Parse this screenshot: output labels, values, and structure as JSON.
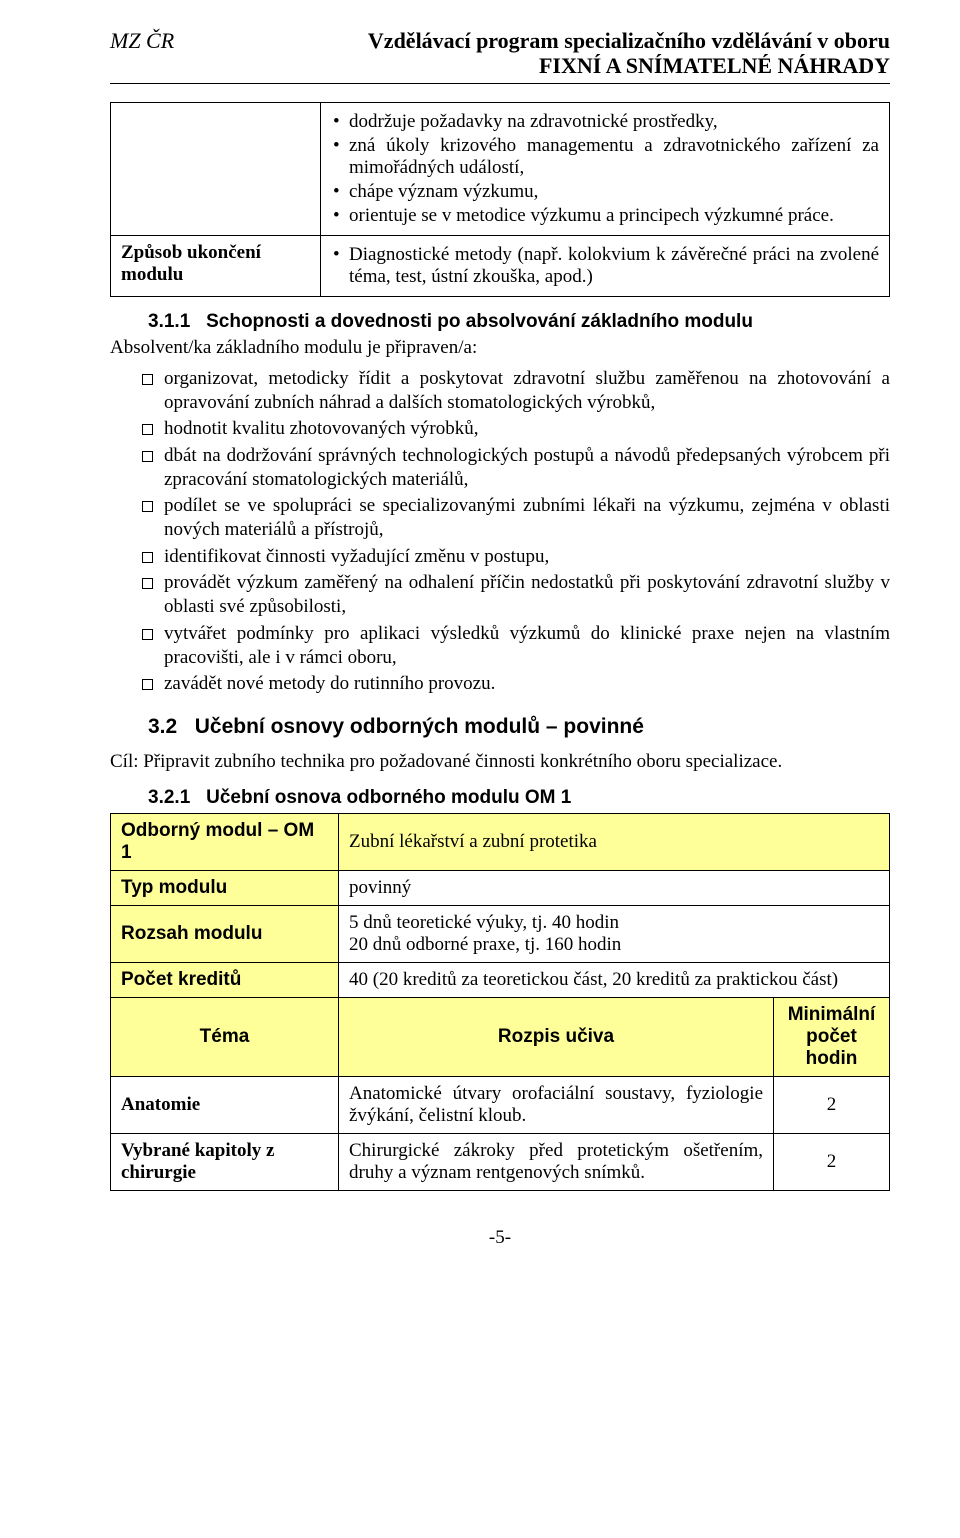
{
  "header": {
    "left": "MZ ČR",
    "right_line1": "Vzdělávací program specializačního vzdělávání v oboru",
    "right_line2": "FIXNÍ A SNÍMATELNÉ NÁHRADY"
  },
  "top_table": {
    "row1_bullets": [
      "dodržuje požadavky na zdravotnické prostředky,",
      "zná úkoly krizového managementu a zdravotnického zařízení za mimořádných událostí,",
      "chápe význam výzkumu,",
      "orientuje se v metodice výzkumu a principech výzkumné práce."
    ],
    "row2_label": "Způsob ukončení modulu",
    "row2_bullet": "Diagnostické metody (např. kolokvium k závěrečné práci na zvolené téma, test, ústní zkouška, apod.)"
  },
  "section_311": {
    "number": "3.1.1",
    "title": "Schopnosti a dovednosti po absolvování základního modulu",
    "intro": "Absolvent/ka základního modulu je připraven/a:",
    "items": [
      "organizovat, metodicky řídit a poskytovat zdravotní službu zaměřenou na zhotovování a opravování zubních náhrad a dalších stomatologických výrobků,",
      "hodnotit kvalitu zhotovovaných výrobků,",
      "dbát na dodržování správných technologických postupů a návodů předepsaných výrobcem při zpracování stomatologických materiálů,",
      "podílet se ve spolupráci se specializovanými zubními lékaři na výzkumu, zejména v oblasti nových materiálů a přístrojů,",
      "identifikovat činnosti vyžadující změnu v postupu,",
      "provádět výzkum zaměřený na odhalení příčin nedostatků při poskytování zdravotní služby v oblasti své způsobilosti,",
      "vytvářet podmínky pro aplikaci výsledků výzkumů do klinické praxe nejen na vlastním pracovišti, ale i v rámci oboru,",
      "zavádět nové metody do rutinního provozu."
    ]
  },
  "section_32": {
    "number": "3.2",
    "title": "Učební osnovy odborných modulů – povinné",
    "cil": "Cíl: Připravit zubního technika pro požadované činnosti konkrétního oboru specializace."
  },
  "section_321": {
    "number": "3.2.1",
    "title": "Učební osnova odborného modulu OM 1"
  },
  "module_table": {
    "r1_label": "Odborný modul – OM 1",
    "r1_value": "Zubní lékařství a zubní protetika",
    "r2_label": "Typ modulu",
    "r2_value": "povinný",
    "r3_label": "Rozsah modulu",
    "r3_value_line1": "5 dnů teoretické výuky, tj. 40 hodin",
    "r3_value_line2": "20 dnů odborné praxe, tj. 160 hodin",
    "r4_label": "Počet kreditů",
    "r4_value": "40 (20 kreditů za teoretickou část, 20 kreditů za praktickou část)",
    "head_tema": "Téma",
    "head_rozpis": "Rozpis učiva",
    "head_hodin": "Minimální počet hodin",
    "rows": [
      {
        "tema": "Anatomie",
        "rozpis": "Anatomické útvary orofaciální soustavy, fyziologie žvýkání, čelistní kloub.",
        "hodin": "2"
      },
      {
        "tema": "Vybrané kapitoly z chirurgie",
        "rozpis": "Chirurgické zákroky před protetickým ošetřením, druhy a význam rentgenových snímků.",
        "hodin": "2"
      }
    ]
  },
  "page_number": "-5-"
}
